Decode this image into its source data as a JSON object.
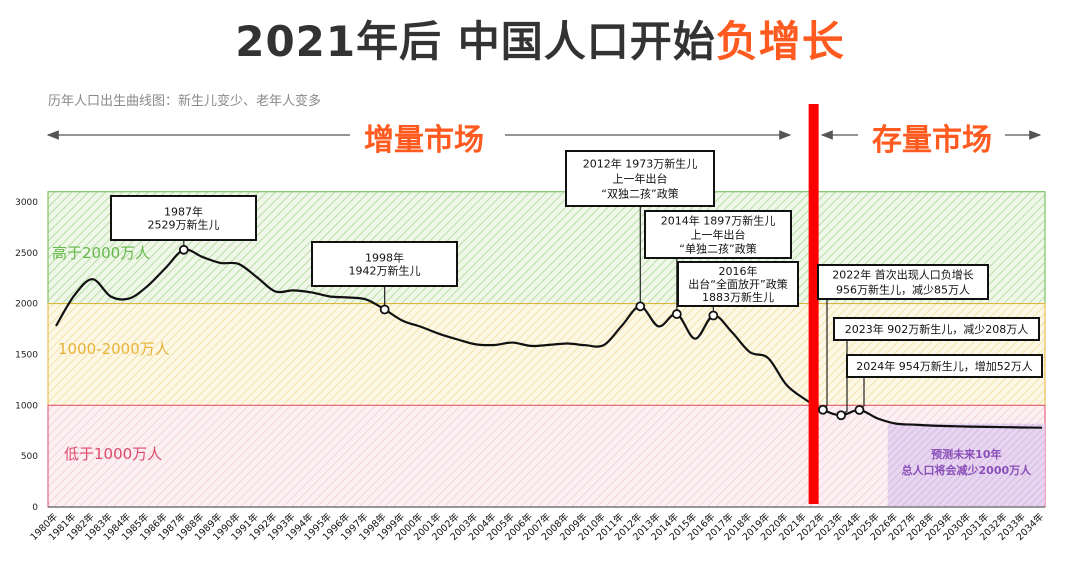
{
  "header": {
    "title_main": "2021年后 中国人口开始",
    "title_highlight": "负增长",
    "subtitle": "历年人口出生曲线图：新生儿变少、老年人变多"
  },
  "markets": {
    "left": "增量市场",
    "right": "存量市场"
  },
  "colors": {
    "accent": "#ff5a1f",
    "divider": "#ff0000",
    "zone_high": "#67b84a",
    "zone_mid": "#e8b33a",
    "zone_low": "#e04a6a",
    "forecast": "#8a4fb8",
    "line": "#111111"
  },
  "chart_data": {
    "type": "line",
    "title": "",
    "xlabel": "",
    "ylabel": "",
    "ylim": [
      0,
      3000
    ],
    "yticks": [
      "0",
      "500",
      "1000",
      "1500",
      "2000",
      "2500",
      "3000"
    ],
    "categories": [
      "1980年",
      "1981年",
      "1982年",
      "1983年",
      "1984年",
      "1985年",
      "1986年",
      "1987年",
      "1988年",
      "1989年",
      "1990年",
      "1991年",
      "1992年",
      "1993年",
      "1994年",
      "1995年",
      "1996年",
      "1997年",
      "1998年",
      "1999年",
      "2000年",
      "2001年",
      "2002年",
      "2003年",
      "2004年",
      "2005年",
      "2006年",
      "2007年",
      "2008年",
      "2009年",
      "2010年",
      "2011年",
      "2012年",
      "2013年",
      "2014年",
      "2015年",
      "2016年",
      "2017年",
      "2018年",
      "2019年",
      "2020年",
      "2021年",
      "2022年",
      "2023年",
      "2024年",
      "2025年",
      "2026年",
      "2027年",
      "2028年",
      "2029年",
      "2030年",
      "2031年",
      "2032年",
      "2033年",
      "2034年"
    ],
    "series": [
      {
        "values": [
          1780,
          2080,
          2240,
          2070,
          2050,
          2170,
          2350,
          2529,
          2460,
          2400,
          2390,
          2260,
          2120,
          2130,
          2110,
          2070,
          2060,
          2040,
          1942,
          1830,
          1771,
          1702,
          1647,
          1599,
          1593,
          1617,
          1584,
          1594,
          1608,
          1591,
          1592,
          1785,
          1973,
          1776,
          1897,
          1655,
          1883,
          1723,
          1523,
          1465,
          1202,
          1062,
          956,
          902,
          954,
          870,
          820,
          810,
          800,
          795,
          790,
          788,
          785,
          782,
          780
        ]
      }
    ],
    "zones": [
      {
        "label": "高于2000万人",
        "min": 2000,
        "max": 3100
      },
      {
        "label": "1000-2000万人",
        "min": 1000,
        "max": 2000
      },
      {
        "label": "低于1000万人",
        "min": 0,
        "max": 1000
      }
    ],
    "divider_after": "2021年",
    "forecast": {
      "from": "2025年",
      "to": "2034年",
      "lines": [
        "预测未来10年",
        "总人口将会减少2000万人"
      ]
    },
    "annotations": [
      {
        "x": "1987年",
        "value": 2529,
        "lines": [
          "1987年",
          "2529万新生儿"
        ]
      },
      {
        "x": "1998年",
        "value": 1942,
        "lines": [
          "1998年",
          "1942万新生儿"
        ]
      },
      {
        "x": "2012年",
        "value": 1973,
        "lines": [
          "2012年 1973万新生儿",
          "上一年出台",
          "“双独二孩”政策"
        ]
      },
      {
        "x": "2014年",
        "value": 1897,
        "lines": [
          "2014年 1897万新生儿",
          "上一年出台",
          "“单独二孩”政策"
        ]
      },
      {
        "x": "2016年",
        "value": 1883,
        "lines": [
          "2016年",
          "出台“全面放开”政策",
          "1883万新生儿"
        ]
      },
      {
        "x": "2022年",
        "value": 956,
        "lines": [
          "2022年 首次出现人口负增长",
          "956万新生儿，减少85万人"
        ]
      },
      {
        "x": "2023年",
        "value": 902,
        "lines": [
          "2023年 902万新生儿，减少208万人"
        ]
      },
      {
        "x": "2024年",
        "value": 954,
        "lines": [
          "2024年 954万新生儿，增加52万人"
        ]
      }
    ]
  }
}
